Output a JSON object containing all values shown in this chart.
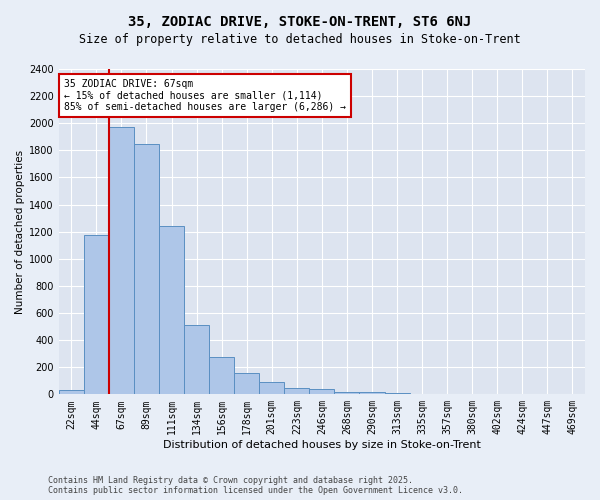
{
  "title1": "35, ZODIAC DRIVE, STOKE-ON-TRENT, ST6 6NJ",
  "title2": "Size of property relative to detached houses in Stoke-on-Trent",
  "xlabel": "Distribution of detached houses by size in Stoke-on-Trent",
  "ylabel": "Number of detached properties",
  "categories": [
    "22sqm",
    "44sqm",
    "67sqm",
    "89sqm",
    "111sqm",
    "134sqm",
    "156sqm",
    "178sqm",
    "201sqm",
    "223sqm",
    "246sqm",
    "268sqm",
    "290sqm",
    "313sqm",
    "335sqm",
    "357sqm",
    "380sqm",
    "402sqm",
    "424sqm",
    "447sqm",
    "469sqm"
  ],
  "values": [
    30,
    1175,
    1975,
    1850,
    1240,
    515,
    275,
    160,
    90,
    50,
    40,
    20,
    15,
    10,
    5,
    5,
    2,
    2,
    1,
    1,
    0
  ],
  "bar_color": "#aec6e8",
  "bar_edge_color": "#5a8fc2",
  "red_line_index": 2,
  "annotation_line1": "35 ZODIAC DRIVE: 67sqm",
  "annotation_line2": "← 15% of detached houses are smaller (1,114)",
  "annotation_line3": "85% of semi-detached houses are larger (6,286) →",
  "ylim": [
    0,
    2400
  ],
  "yticks": [
    0,
    200,
    400,
    600,
    800,
    1000,
    1200,
    1400,
    1600,
    1800,
    2000,
    2200,
    2400
  ],
  "background_color": "#e8eef7",
  "plot_bg_color": "#dde4f0",
  "grid_color": "#ffffff",
  "annotation_box_color": "#ffffff",
  "annotation_box_edge_color": "#cc0000",
  "red_line_color": "#cc0000",
  "footer1": "Contains HM Land Registry data © Crown copyright and database right 2025.",
  "footer2": "Contains public sector information licensed under the Open Government Licence v3.0.",
  "title1_fontsize": 10,
  "title2_fontsize": 8.5,
  "xlabel_fontsize": 8,
  "ylabel_fontsize": 7.5,
  "tick_fontsize": 7,
  "annotation_fontsize": 7,
  "footer_fontsize": 6
}
